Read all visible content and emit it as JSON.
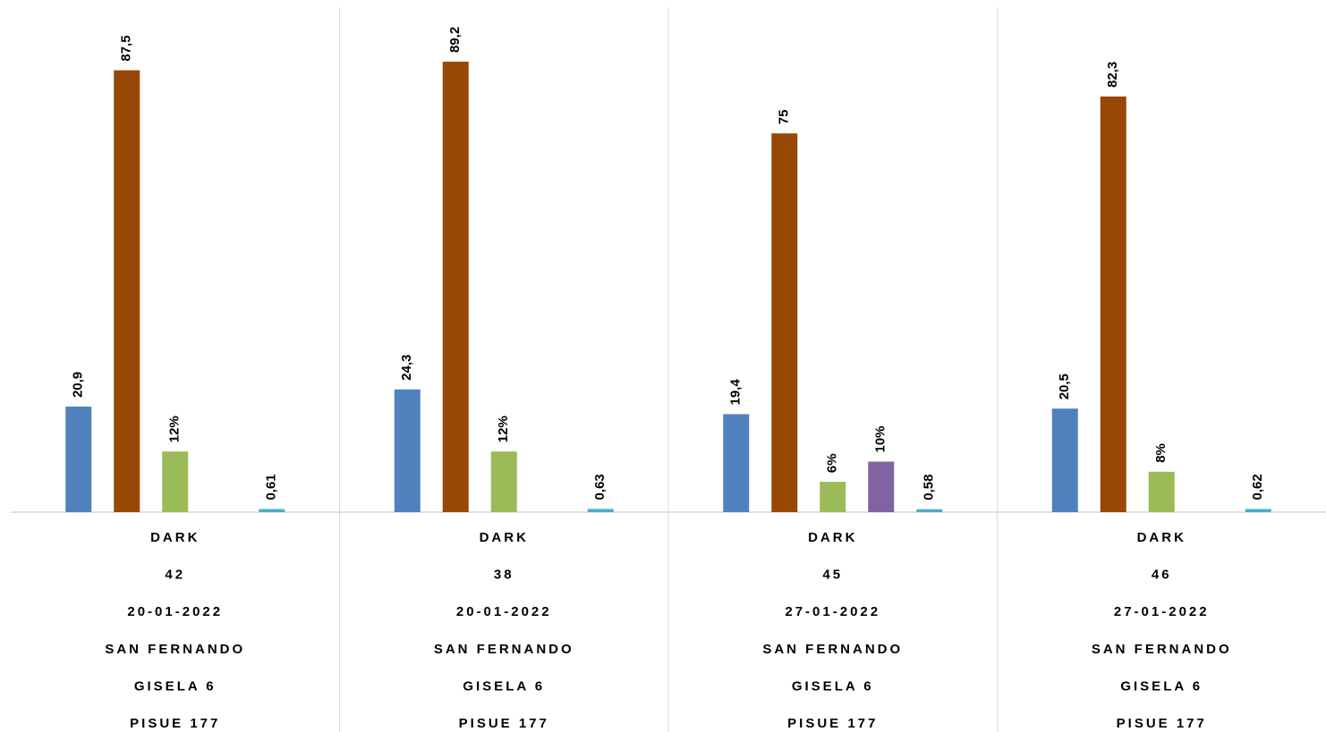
{
  "chart_data": {
    "type": "bar",
    "categories": [
      [
        "DARK",
        "42",
        "20-01-2022",
        "SAN FERNANDO",
        "GISELA 6",
        "PISUE 177"
      ],
      [
        "DARK",
        "38",
        "20-01-2022",
        "SAN FERNANDO",
        "GISELA 6",
        "PISUE 177"
      ],
      [
        "DARK",
        "45",
        "27-01-2022",
        "SAN FERNANDO",
        "GISELA 6",
        "PISUE 177"
      ],
      [
        "DARK",
        "46",
        "27-01-2022",
        "SAN FERNANDO",
        "GISELA 6",
        "PISUE 177"
      ]
    ],
    "series": [
      {
        "color": "#4f81bd",
        "values": [
          20.9,
          24.3,
          19.4,
          20.5
        ],
        "value_labels": [
          "20,9",
          "24,3",
          "19,4",
          "20,5"
        ]
      },
      {
        "color": "#974706",
        "values": [
          87.5,
          89.2,
          75,
          82.3
        ],
        "value_labels": [
          "87,5",
          "89,2",
          "75",
          "82,3"
        ]
      },
      {
        "color": "#9bbb59",
        "values": [
          12,
          12,
          6,
          8
        ],
        "value_labels": [
          "12%",
          "12%",
          "6%",
          "8%"
        ]
      },
      {
        "color": "#8064a2",
        "values": [
          null,
          null,
          10,
          null
        ],
        "value_labels": [
          null,
          null,
          "10%",
          null
        ]
      },
      {
        "color": "#4bacc6",
        "values": [
          0.61,
          0.63,
          0.58,
          0.62
        ],
        "value_labels": [
          "0,61",
          "0,63",
          "0,58",
          "0,62"
        ]
      }
    ],
    "ylim": [
      0,
      100
    ]
  }
}
